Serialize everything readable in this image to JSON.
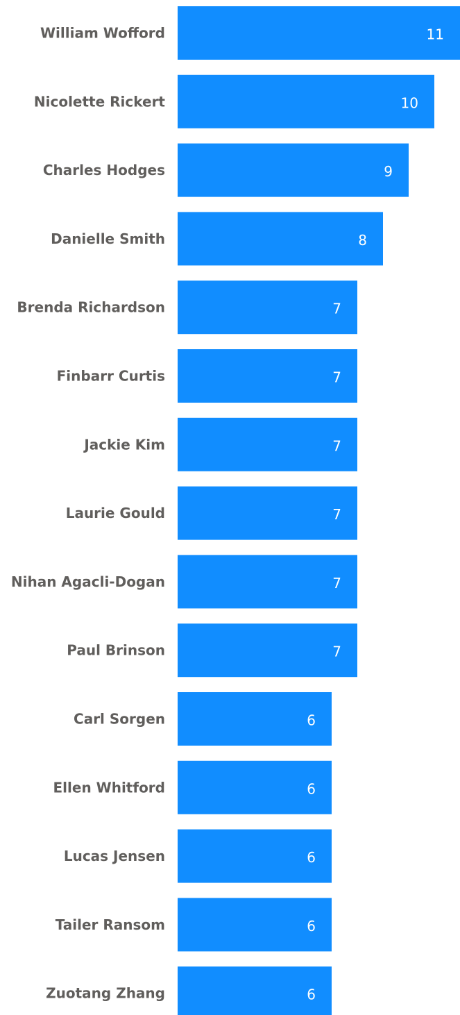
{
  "chart_data": {
    "type": "bar",
    "orientation": "horizontal",
    "title": "",
    "xlabel": "",
    "ylabel": "",
    "categories": [
      "William Wofford",
      "Nicolette Rickert",
      "Charles Hodges",
      "Danielle Smith",
      "Brenda Richardson",
      "Finbarr Curtis",
      "Jackie Kim",
      "Laurie Gould",
      "Nihan Agacli-Dogan",
      "Paul Brinson",
      "Carl Sorgen",
      "Ellen Whitford",
      "Lucas Jensen",
      "Tailer Ransom",
      "Zuotang Zhang"
    ],
    "values": [
      11,
      10,
      9,
      8,
      7,
      7,
      7,
      7,
      7,
      7,
      6,
      6,
      6,
      6,
      6
    ],
    "xlim": [
      0,
      11
    ],
    "grid": false,
    "data_labels": "inside-end",
    "colors": {
      "bar": "#118DFF",
      "category_label": "#605E5C",
      "value_label": "#FFFFFF"
    }
  }
}
